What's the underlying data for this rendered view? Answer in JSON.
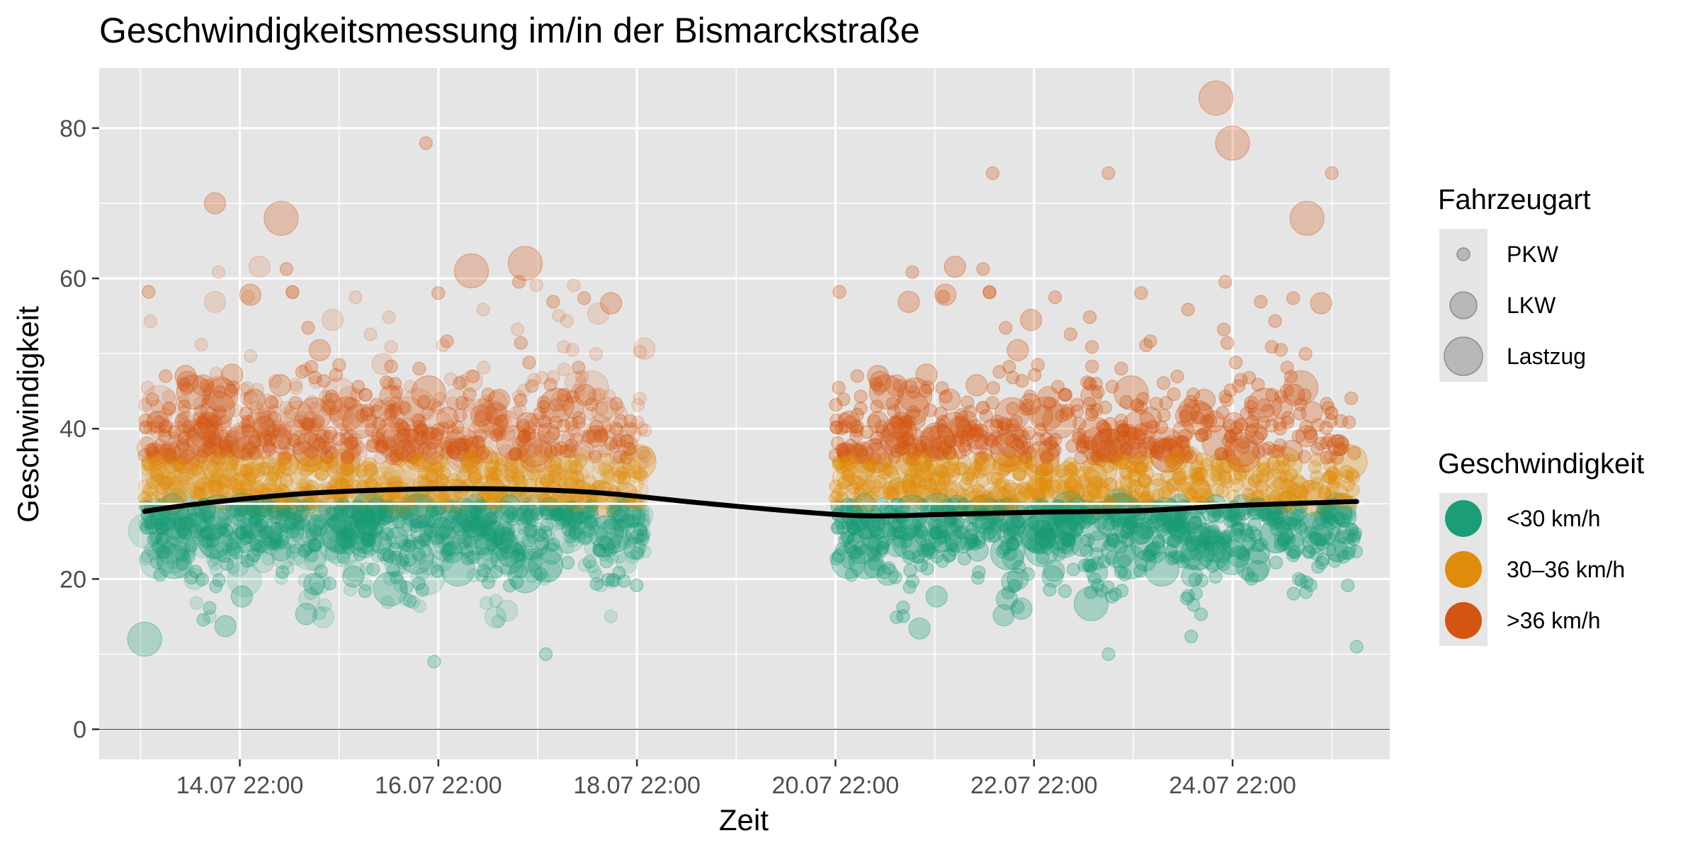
{
  "chart_data": {
    "type": "scatter",
    "title": "Geschwindigkeitsmessung im/in der Bismarckstraße",
    "xlabel": "Zeit",
    "ylabel": "Geschwindigkeit",
    "ylim": [
      -4,
      88
    ],
    "xlim": [
      "2021-07-13 12:00",
      "2021-07-26 12:00"
    ],
    "x_ticks": [
      {
        "x": "2021-07-14 22:00",
        "label": "14.07 22:00"
      },
      {
        "x": "2021-07-16 22:00",
        "label": "16.07 22:00"
      },
      {
        "x": "2021-07-18 22:00",
        "label": "18.07 22:00"
      },
      {
        "x": "2021-07-20 22:00",
        "label": "20.07 22:00"
      },
      {
        "x": "2021-07-22 22:00",
        "label": "22.07 22:00"
      },
      {
        "x": "2021-07-24 22:00",
        "label": "24.07 22:00"
      }
    ],
    "y_ticks": [
      0,
      20,
      40,
      60,
      80
    ],
    "grid": true,
    "reference_line_y": 30,
    "background": "#e5e5e5",
    "measurement_periods": [
      {
        "start": "2021-07-13 23:00",
        "end": "2021-07-19 00:00"
      },
      {
        "start": "2021-07-20 22:00",
        "end": "2021-07-26 04:00"
      }
    ],
    "legends": [
      {
        "title": "Fahrzeugart",
        "position": "right",
        "entries": [
          {
            "label": "PKW",
            "size": "small"
          },
          {
            "label": "LKW",
            "size": "medium"
          },
          {
            "label": "Lastzug",
            "size": "large"
          }
        ]
      },
      {
        "title": "Geschwindigkeit",
        "position": "right",
        "entries": [
          {
            "label": "<30 km/h",
            "color": "#1b9e77"
          },
          {
            "label": "30–36 km/h",
            "color": "#e08c0b"
          },
          {
            "label": ">36 km/h",
            "color": "#d45411"
          }
        ]
      }
    ],
    "trend_line": [
      {
        "x": "2021-07-13 23:00",
        "y": 29
      },
      {
        "x": "2021-07-14 12:00",
        "y": 30
      },
      {
        "x": "2021-07-15 12:00",
        "y": 31.3
      },
      {
        "x": "2021-07-16 12:00",
        "y": 31.9
      },
      {
        "x": "2021-07-17 12:00",
        "y": 32
      },
      {
        "x": "2021-07-18 12:00",
        "y": 31.5
      },
      {
        "x": "2021-07-19 12:00",
        "y": 30.2
      },
      {
        "x": "2021-07-20 12:00",
        "y": 29
      },
      {
        "x": "2021-07-21 06:00",
        "y": 28.4
      },
      {
        "x": "2021-07-22 00:00",
        "y": 28.6
      },
      {
        "x": "2021-07-23 00:00",
        "y": 28.9
      },
      {
        "x": "2021-07-24 00:00",
        "y": 29.1
      },
      {
        "x": "2021-07-25 00:00",
        "y": 29.8
      },
      {
        "x": "2021-07-26 04:00",
        "y": 30.3
      }
    ],
    "daily_speed_profile": {
      "band_green": [
        12,
        30
      ],
      "band_orange": [
        30,
        36
      ],
      "band_red": [
        36,
        50
      ]
    },
    "notable_points": [
      {
        "x": "2021-07-13 23:00",
        "y": 12,
        "vehicle": "Lastzug"
      },
      {
        "x": "2021-07-14 16:00",
        "y": 70,
        "vehicle": "LKW"
      },
      {
        "x": "2021-07-15 08:00",
        "y": 68,
        "vehicle": "Lastzug"
      },
      {
        "x": "2021-07-16 19:00",
        "y": 78,
        "vehicle": "PKW"
      },
      {
        "x": "2021-07-17 06:00",
        "y": 61,
        "vehicle": "Lastzug"
      },
      {
        "x": "2021-07-17 19:00",
        "y": 62,
        "vehicle": "Lastzug"
      },
      {
        "x": "2021-07-16 21:00",
        "y": 9,
        "vehicle": "PKW"
      },
      {
        "x": "2021-07-18 00:00",
        "y": 10,
        "vehicle": "PKW"
      },
      {
        "x": "2021-07-22 12:00",
        "y": 74,
        "vehicle": "PKW"
      },
      {
        "x": "2021-07-23 16:00",
        "y": 74,
        "vehicle": "PKW"
      },
      {
        "x": "2021-07-24 18:00",
        "y": 84,
        "vehicle": "Lastzug"
      },
      {
        "x": "2021-07-24 22:00",
        "y": 78,
        "vehicle": "Lastzug"
      },
      {
        "x": "2021-07-25 16:00",
        "y": 68,
        "vehicle": "Lastzug"
      },
      {
        "x": "2021-07-25 22:00",
        "y": 74,
        "vehicle": "PKW"
      },
      {
        "x": "2021-07-23 16:00",
        "y": 10,
        "vehicle": "PKW"
      },
      {
        "x": "2021-07-26 04:00",
        "y": 11,
        "vehicle": "PKW"
      }
    ]
  }
}
